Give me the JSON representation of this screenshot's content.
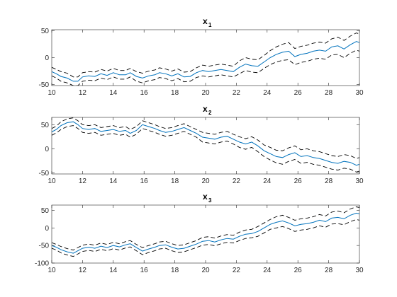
{
  "chart_data": [
    {
      "type": "line",
      "title": "x",
      "title_subscript": "1",
      "xlim": [
        10,
        30
      ],
      "ylim": [
        -52,
        52
      ],
      "xticks": [
        10,
        12,
        14,
        16,
        18,
        20,
        22,
        24,
        26,
        28,
        30
      ],
      "yticks": [
        -50,
        0,
        50
      ],
      "x": [
        10,
        10.3,
        10.6,
        11.0,
        11.4,
        11.7,
        12.0,
        12.4,
        12.8,
        13.2,
        13.6,
        14.0,
        14.4,
        14.8,
        15.1,
        15.5,
        15.9,
        16.3,
        16.7,
        17.0,
        17.4,
        17.8,
        18.2,
        18.6,
        19.0,
        19.4,
        19.8,
        20.2,
        20.6,
        21.0,
        21.4,
        21.8,
        22.2,
        22.6,
        23.0,
        23.4,
        23.8,
        24.2,
        24.6,
        25.0,
        25.4,
        25.8,
        26.2,
        26.6,
        27.0,
        27.4,
        27.8,
        28.2,
        28.6,
        29.0,
        29.4,
        29.8,
        30
      ],
      "mean": [
        -26,
        -30,
        -35,
        -38,
        -44,
        -44,
        -36,
        -34,
        -35,
        -30,
        -33,
        -28,
        -32,
        -32,
        -28,
        -35,
        -38,
        -34,
        -32,
        -28,
        -30,
        -34,
        -30,
        -36,
        -35,
        -28,
        -24,
        -26,
        -24,
        -22,
        -24,
        -26,
        -18,
        -12,
        -15,
        -16,
        -8,
        0,
        6,
        10,
        12,
        2,
        6,
        8,
        12,
        14,
        12,
        20,
        22,
        16,
        24,
        30,
        28
      ],
      "upper": [
        -18,
        -22,
        -26,
        -29,
        -36,
        -36,
        -28,
        -26,
        -27,
        -22,
        -25,
        -20,
        -24,
        -24,
        -20,
        -26,
        -29,
        -25,
        -23,
        -19,
        -21,
        -25,
        -21,
        -27,
        -26,
        -19,
        -14,
        -16,
        -14,
        -12,
        -14,
        -16,
        -6,
        0,
        -3,
        -4,
        4,
        13,
        20,
        25,
        28,
        17,
        21,
        23,
        27,
        29,
        27,
        35,
        38,
        32,
        40,
        46,
        44
      ],
      "lower": [
        -34,
        -38,
        -44,
        -47,
        -52,
        -52,
        -44,
        -42,
        -43,
        -38,
        -41,
        -36,
        -40,
        -40,
        -36,
        -44,
        -47,
        -43,
        -41,
        -37,
        -39,
        -43,
        -39,
        -45,
        -44,
        -37,
        -34,
        -36,
        -34,
        -32,
        -34,
        -36,
        -30,
        -24,
        -27,
        -28,
        -20,
        -13,
        -8,
        -5,
        -4,
        -13,
        -9,
        -7,
        -3,
        -1,
        -3,
        5,
        6,
        0,
        8,
        14,
        12
      ],
      "colors": {
        "mean": "#0072bd",
        "bounds": "#000000"
      }
    },
    {
      "type": "line",
      "title": "x",
      "title_subscript": "2",
      "xlim": [
        10,
        30
      ],
      "ylim": [
        -52,
        65
      ],
      "xticks": [
        10,
        12,
        14,
        16,
        18,
        20,
        22,
        24,
        26,
        28,
        30
      ],
      "yticks": [
        -50,
        0,
        50
      ],
      "x": [
        10,
        10.3,
        10.6,
        11.0,
        11.4,
        11.7,
        12.0,
        12.4,
        12.8,
        13.2,
        13.6,
        14.0,
        14.4,
        14.8,
        15.1,
        15.5,
        15.9,
        16.3,
        16.7,
        17.0,
        17.4,
        17.8,
        18.2,
        18.6,
        19.0,
        19.4,
        19.8,
        20.2,
        20.6,
        21.0,
        21.4,
        21.8,
        22.2,
        22.6,
        23.0,
        23.4,
        23.8,
        24.2,
        24.6,
        25.0,
        25.4,
        25.8,
        26.2,
        26.6,
        27.0,
        27.4,
        27.8,
        28.2,
        28.6,
        29.0,
        29.4,
        29.8,
        30
      ],
      "mean": [
        35,
        40,
        48,
        54,
        56,
        50,
        42,
        40,
        42,
        36,
        38,
        40,
        36,
        38,
        32,
        38,
        50,
        46,
        42,
        38,
        34,
        36,
        40,
        44,
        38,
        32,
        24,
        22,
        20,
        24,
        26,
        20,
        14,
        10,
        14,
        6,
        -4,
        -10,
        -16,
        -18,
        -12,
        -8,
        -16,
        -14,
        -18,
        -20,
        -24,
        -28,
        -30,
        -26,
        -28,
        -34,
        -32
      ],
      "upper": [
        42,
        47,
        56,
        62,
        64,
        58,
        50,
        48,
        50,
        44,
        46,
        48,
        44,
        46,
        40,
        46,
        58,
        54,
        50,
        46,
        42,
        44,
        48,
        52,
        46,
        40,
        34,
        32,
        30,
        34,
        36,
        30,
        25,
        21,
        25,
        18,
        8,
        3,
        -3,
        -4,
        2,
        6,
        -2,
        0,
        -4,
        -6,
        -10,
        -14,
        -16,
        -12,
        -14,
        -20,
        -18
      ],
      "lower": [
        28,
        33,
        40,
        46,
        48,
        42,
        34,
        32,
        34,
        28,
        30,
        32,
        28,
        30,
        24,
        30,
        42,
        38,
        34,
        30,
        26,
        28,
        32,
        36,
        30,
        24,
        14,
        12,
        10,
        14,
        16,
        10,
        3,
        -1,
        3,
        -6,
        -16,
        -23,
        -29,
        -32,
        -26,
        -22,
        -30,
        -28,
        -32,
        -34,
        -38,
        -42,
        -44,
        -40,
        -42,
        -48,
        -46
      ],
      "colors": {
        "mean": "#0072bd",
        "bounds": "#000000"
      }
    },
    {
      "type": "line",
      "title": "x",
      "title_subscript": "3",
      "xlim": [
        10,
        30
      ],
      "ylim": [
        -100,
        65
      ],
      "xticks": [
        10,
        12,
        14,
        16,
        18,
        20,
        22,
        24,
        26,
        28,
        30
      ],
      "yticks": [
        -100,
        -50,
        0,
        50
      ],
      "x": [
        10,
        10.3,
        10.6,
        11.0,
        11.4,
        11.7,
        12.0,
        12.4,
        12.8,
        13.2,
        13.6,
        14.0,
        14.4,
        14.8,
        15.1,
        15.5,
        15.9,
        16.3,
        16.7,
        17.0,
        17.4,
        17.8,
        18.2,
        18.6,
        19.0,
        19.4,
        19.8,
        20.2,
        20.6,
        21.0,
        21.4,
        21.8,
        22.2,
        22.6,
        23.0,
        23.4,
        23.8,
        24.2,
        24.6,
        25.0,
        25.4,
        25.8,
        26.2,
        26.6,
        27.0,
        27.4,
        27.8,
        28.2,
        28.6,
        29.0,
        29.4,
        29.8,
        30
      ],
      "mean": [
        -50,
        -55,
        -62,
        -68,
        -72,
        -65,
        -58,
        -55,
        -58,
        -52,
        -56,
        -50,
        -54,
        -48,
        -45,
        -56,
        -66,
        -60,
        -55,
        -50,
        -48,
        -55,
        -60,
        -58,
        -52,
        -46,
        -38,
        -36,
        -40,
        -34,
        -30,
        -32,
        -24,
        -18,
        -16,
        -10,
        0,
        10,
        16,
        20,
        14,
        6,
        10,
        12,
        16,
        22,
        18,
        28,
        30,
        26,
        36,
        42,
        40
      ],
      "upper": [
        -42,
        -47,
        -53,
        -59,
        -63,
        -56,
        -49,
        -46,
        -49,
        -43,
        -47,
        -41,
        -45,
        -39,
        -36,
        -47,
        -56,
        -50,
        -45,
        -40,
        -38,
        -45,
        -50,
        -48,
        -42,
        -36,
        -27,
        -25,
        -29,
        -23,
        -19,
        -21,
        -12,
        -6,
        -4,
        4,
        14,
        24,
        32,
        36,
        30,
        22,
        26,
        28,
        32,
        38,
        34,
        45,
        48,
        43,
        54,
        60,
        58
      ],
      "lower": [
        -58,
        -63,
        -71,
        -77,
        -81,
        -74,
        -67,
        -64,
        -67,
        -61,
        -65,
        -59,
        -63,
        -57,
        -54,
        -65,
        -76,
        -70,
        -65,
        -60,
        -58,
        -65,
        -70,
        -68,
        -62,
        -56,
        -49,
        -47,
        -51,
        -45,
        -41,
        -43,
        -36,
        -30,
        -28,
        -24,
        -14,
        -4,
        0,
        4,
        -2,
        -10,
        -6,
        -4,
        0,
        6,
        2,
        11,
        12,
        9,
        18,
        24,
        22
      ],
      "colors": {
        "mean": "#0072bd",
        "bounds": "#000000"
      }
    }
  ]
}
